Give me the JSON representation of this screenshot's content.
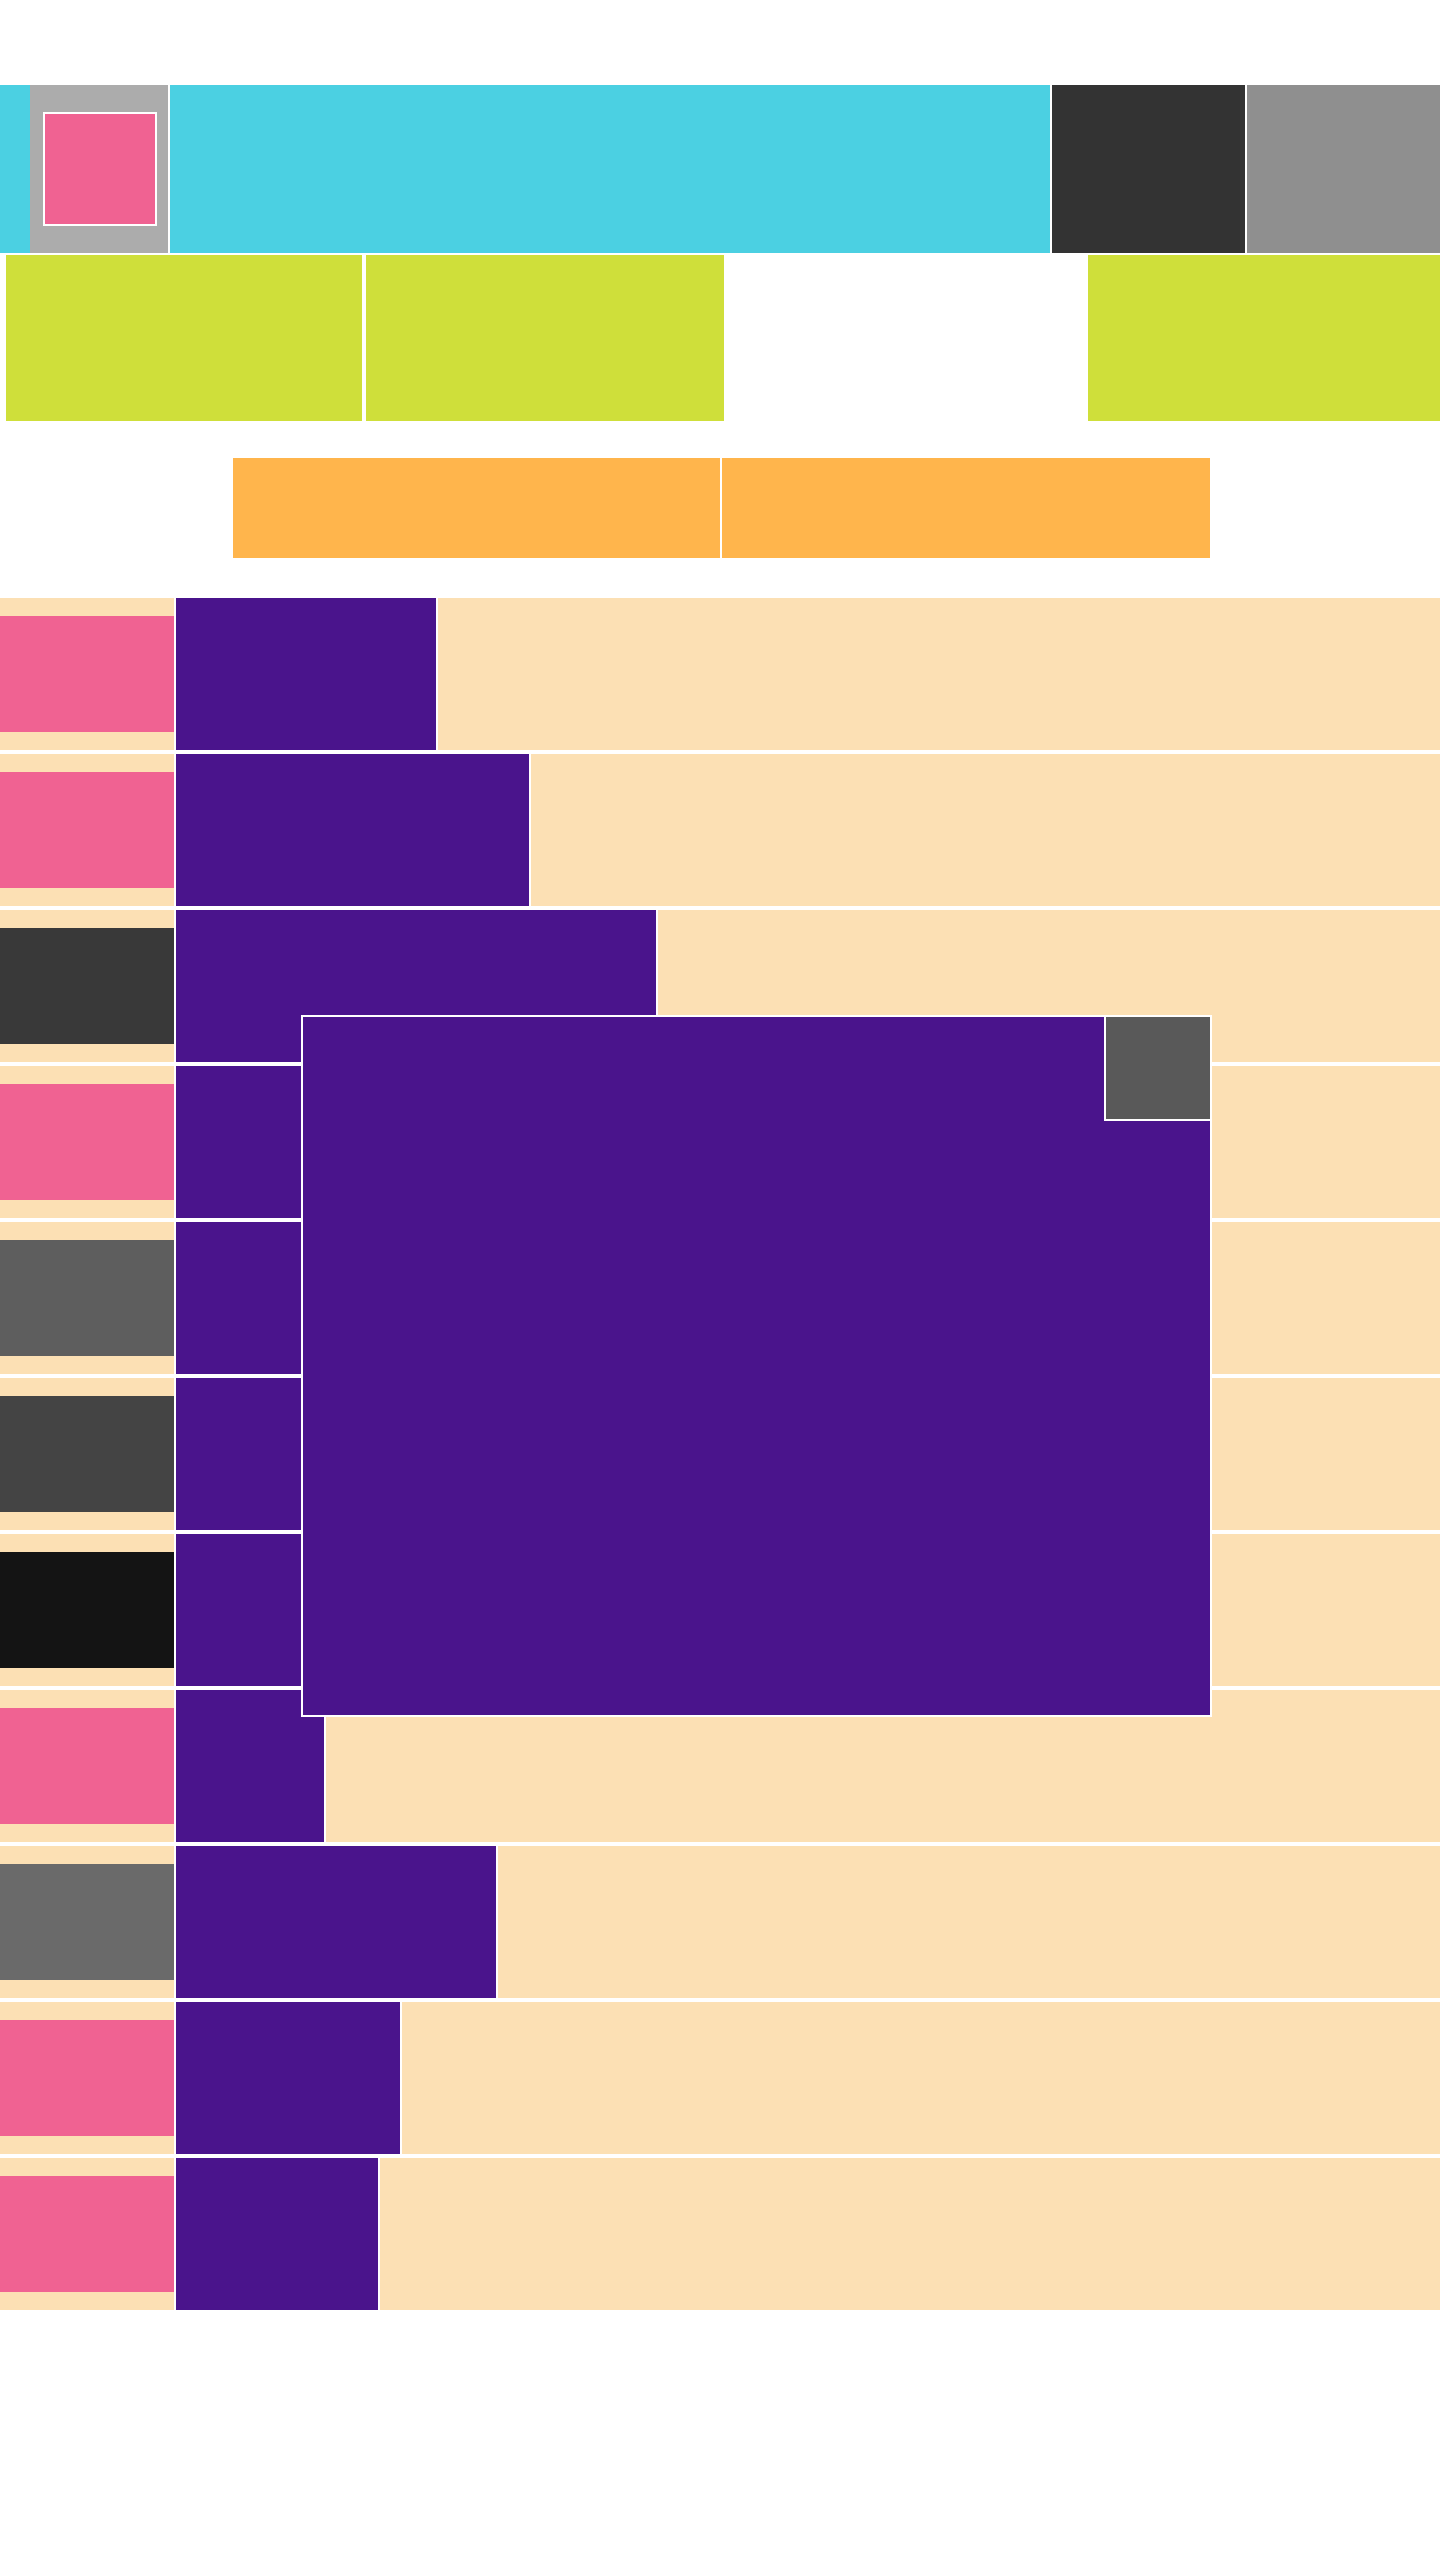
{
  "colors": {
    "header_accent": "#4bd0e2",
    "logo_frame": "#acacac",
    "logo_mark": "#f06292",
    "header_dark": "#333333",
    "header_grey": "#8f8f8f",
    "nav_tile": "#cfdf3a",
    "tab": "#ffb54c",
    "row_background": "#fce0b4",
    "row_bar": "#4a148c",
    "modal_background": "#4a148c",
    "modal_close": "#595959"
  },
  "header": {
    "icon": "logo-icon"
  },
  "nav": {
    "tiles": [
      {
        "name": "nav-tile-1",
        "color": "#cfdf3a"
      },
      {
        "name": "nav-tile-2",
        "color": "#cfdf3a"
      },
      {
        "name": "nav-tile-3",
        "color": "#cfdf3a"
      }
    ]
  },
  "tabs": [
    {
      "name": "tab-1"
    },
    {
      "name": "tab-2"
    }
  ],
  "list": {
    "rows": [
      {
        "thumb_color": "#f06292",
        "bar_fraction": 0.206
      },
      {
        "thumb_color": "#f06292",
        "bar_fraction": 0.279
      },
      {
        "thumb_color": "#393939",
        "bar_fraction": 0.38
      },
      {
        "thumb_color": "#f06292",
        "bar_fraction": 0.38
      },
      {
        "thumb_color": "#5e5e5e",
        "bar_fraction": 0.38
      },
      {
        "thumb_color": "#444444",
        "bar_fraction": 0.38
      },
      {
        "thumb_color": "#141414",
        "bar_fraction": 0.38
      },
      {
        "thumb_color": "#f06292",
        "bar_fraction": 0.117
      },
      {
        "thumb_color": "#6a6a6a",
        "bar_fraction": 0.253
      },
      {
        "thumb_color": "#f06292",
        "bar_fraction": 0.177
      },
      {
        "thumb_color": "#f06292",
        "bar_fraction": 0.16
      }
    ]
  },
  "modal": {
    "close_icon": "close-icon"
  }
}
